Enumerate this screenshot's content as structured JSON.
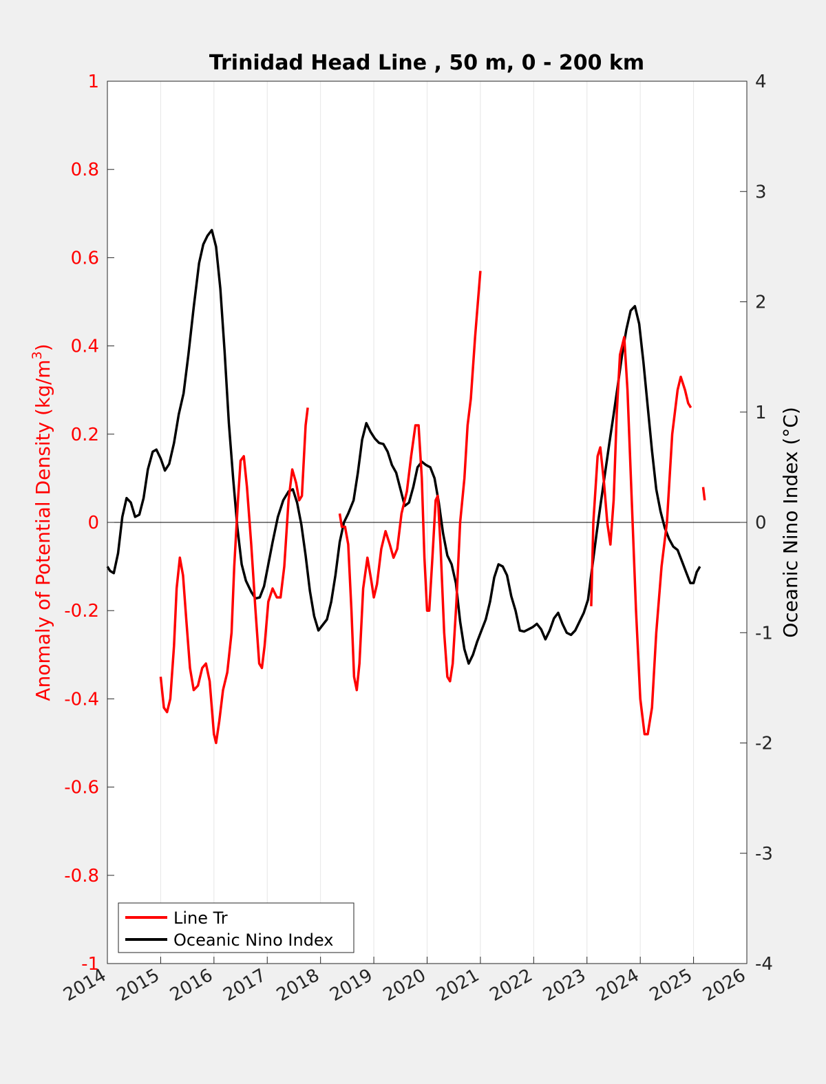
{
  "chart_data": {
    "type": "line",
    "title": "Trinidad Head Line , 50 m, 0 - 200 km",
    "xlabel": "",
    "xlim": [
      2014,
      2026
    ],
    "x_ticks": [
      "2014",
      "2015",
      "2016",
      "2017",
      "2018",
      "2019",
      "2020",
      "2021",
      "2022",
      "2023",
      "2024",
      "2025",
      "2026"
    ],
    "grid": "vertical",
    "legend_position": "bottom-left",
    "y_left": {
      "label": "Anomaly of Potential Density (kg/m",
      "label_superscript": "3",
      "label_suffix": ")",
      "ylim": [
        -1,
        1
      ],
      "ticks": [
        "1",
        "0.8",
        "0.6",
        "0.4",
        "0.2",
        "0",
        "-0.2",
        "-0.4",
        "-0.6",
        "-0.8",
        "-1"
      ],
      "color": "#ff0000"
    },
    "y_right": {
      "label": "Oceanic Nino Index (°C)",
      "ylim": [
        -4,
        4
      ],
      "ticks": [
        "4",
        "3",
        "2",
        "1",
        "0",
        "-1",
        "-2",
        "-3",
        "-4"
      ],
      "color": "#000000"
    },
    "series": [
      {
        "name": "Line Tr",
        "axis": "left",
        "color": "#ff0000",
        "segments": [
          [
            [
              2015.0,
              -0.35
            ],
            [
              2015.06,
              -0.42
            ],
            [
              2015.12,
              -0.43
            ],
            [
              2015.18,
              -0.4
            ],
            [
              2015.25,
              -0.28
            ],
            [
              2015.3,
              -0.15
            ],
            [
              2015.36,
              -0.08
            ],
            [
              2015.42,
              -0.12
            ],
            [
              2015.48,
              -0.22
            ],
            [
              2015.55,
              -0.33
            ],
            [
              2015.62,
              -0.38
            ],
            [
              2015.7,
              -0.37
            ],
            [
              2015.78,
              -0.33
            ],
            [
              2015.85,
              -0.32
            ],
            [
              2015.92,
              -0.36
            ],
            [
              2016.0,
              -0.48
            ],
            [
              2016.04,
              -0.5
            ],
            [
              2016.1,
              -0.45
            ],
            [
              2016.17,
              -0.38
            ],
            [
              2016.25,
              -0.34
            ],
            [
              2016.33,
              -0.25
            ],
            [
              2016.38,
              -0.1
            ],
            [
              2016.45,
              0.05
            ],
            [
              2016.5,
              0.14
            ],
            [
              2016.56,
              0.15
            ],
            [
              2016.62,
              0.08
            ],
            [
              2016.7,
              -0.05
            ],
            [
              2016.78,
              -0.2
            ],
            [
              2016.85,
              -0.32
            ],
            [
              2016.9,
              -0.33
            ],
            [
              2016.95,
              -0.28
            ],
            [
              2017.02,
              -0.18
            ],
            [
              2017.1,
              -0.15
            ],
            [
              2017.18,
              -0.17
            ],
            [
              2017.25,
              -0.17
            ],
            [
              2017.32,
              -0.1
            ],
            [
              2017.4,
              0.05
            ],
            [
              2017.47,
              0.12
            ],
            [
              2017.54,
              0.09
            ],
            [
              2017.6,
              0.05
            ],
            [
              2017.65,
              0.06
            ],
            [
              2017.72,
              0.22
            ],
            [
              2017.76,
              0.26
            ]
          ],
          [
            [
              2018.36,
              0.02
            ],
            [
              2018.4,
              -0.01
            ],
            [
              2018.46,
              -0.01
            ],
            [
              2018.52,
              -0.05
            ],
            [
              2018.58,
              -0.2
            ],
            [
              2018.63,
              -0.35
            ],
            [
              2018.68,
              -0.38
            ],
            [
              2018.73,
              -0.32
            ],
            [
              2018.8,
              -0.15
            ],
            [
              2018.88,
              -0.08
            ],
            [
              2018.95,
              -0.13
            ],
            [
              2019.0,
              -0.17
            ],
            [
              2019.06,
              -0.14
            ],
            [
              2019.14,
              -0.06
            ],
            [
              2019.22,
              -0.02
            ],
            [
              2019.3,
              -0.05
            ],
            [
              2019.37,
              -0.08
            ],
            [
              2019.44,
              -0.06
            ],
            [
              2019.52,
              0.02
            ],
            [
              2019.62,
              0.07
            ],
            [
              2019.7,
              0.15
            ],
            [
              2019.78,
              0.22
            ],
            [
              2019.84,
              0.22
            ],
            [
              2019.9,
              0.1
            ],
            [
              2019.95,
              -0.08
            ],
            [
              2020.0,
              -0.2
            ],
            [
              2020.04,
              -0.2
            ],
            [
              2020.1,
              -0.08
            ],
            [
              2020.16,
              0.05
            ],
            [
              2020.2,
              0.06
            ],
            [
              2020.25,
              -0.05
            ],
            [
              2020.32,
              -0.25
            ],
            [
              2020.38,
              -0.35
            ],
            [
              2020.43,
              -0.36
            ],
            [
              2020.48,
              -0.32
            ],
            [
              2020.55,
              -0.18
            ],
            [
              2020.62,
              0.0
            ],
            [
              2020.7,
              0.1
            ],
            [
              2020.76,
              0.22
            ],
            [
              2020.82,
              0.28
            ],
            [
              2020.9,
              0.42
            ],
            [
              2021.0,
              0.57
            ]
          ],
          [
            [
              2023.08,
              -0.19
            ],
            [
              2023.12,
              0.0
            ],
            [
              2023.2,
              0.15
            ],
            [
              2023.25,
              0.17
            ],
            [
              2023.32,
              0.09
            ],
            [
              2023.38,
              0.0
            ],
            [
              2023.44,
              -0.05
            ],
            [
              2023.5,
              0.05
            ],
            [
              2023.56,
              0.25
            ],
            [
              2023.62,
              0.38
            ],
            [
              2023.7,
              0.42
            ],
            [
              2023.76,
              0.3
            ],
            [
              2023.84,
              0.05
            ],
            [
              2023.92,
              -0.2
            ],
            [
              2024.0,
              -0.4
            ],
            [
              2024.08,
              -0.48
            ],
            [
              2024.14,
              -0.48
            ],
            [
              2024.22,
              -0.42
            ],
            [
              2024.3,
              -0.25
            ],
            [
              2024.4,
              -0.1
            ],
            [
              2024.5,
              0.0
            ],
            [
              2024.6,
              0.2
            ],
            [
              2024.7,
              0.3
            ],
            [
              2024.76,
              0.33
            ],
            [
              2024.84,
              0.3
            ],
            [
              2024.9,
              0.27
            ],
            [
              2024.95,
              0.26
            ]
          ],
          [
            [
              2025.18,
              0.08
            ],
            [
              2025.21,
              0.05
            ]
          ]
        ]
      },
      {
        "name": "Oceanic Nino Index",
        "axis": "right",
        "color": "#000000",
        "segments": [
          [
            [
              2014.0,
              -0.4
            ],
            [
              2014.05,
              -0.44
            ],
            [
              2014.12,
              -0.46
            ],
            [
              2014.2,
              -0.28
            ],
            [
              2014.28,
              0.05
            ],
            [
              2014.36,
              0.22
            ],
            [
              2014.44,
              0.18
            ],
            [
              2014.52,
              0.05
            ],
            [
              2014.6,
              0.07
            ],
            [
              2014.68,
              0.22
            ],
            [
              2014.76,
              0.48
            ],
            [
              2014.85,
              0.64
            ],
            [
              2014.92,
              0.66
            ],
            [
              2015.0,
              0.58
            ],
            [
              2015.08,
              0.47
            ],
            [
              2015.16,
              0.53
            ],
            [
              2015.25,
              0.72
            ],
            [
              2015.34,
              0.98
            ],
            [
              2015.43,
              1.17
            ],
            [
              2015.52,
              1.52
            ],
            [
              2015.62,
              1.95
            ],
            [
              2015.72,
              2.35
            ],
            [
              2015.8,
              2.52
            ],
            [
              2015.88,
              2.6
            ],
            [
              2015.96,
              2.65
            ],
            [
              2016.04,
              2.5
            ],
            [
              2016.12,
              2.12
            ],
            [
              2016.2,
              1.55
            ],
            [
              2016.28,
              0.9
            ],
            [
              2016.36,
              0.4
            ],
            [
              2016.44,
              -0.05
            ],
            [
              2016.52,
              -0.38
            ],
            [
              2016.6,
              -0.53
            ],
            [
              2016.7,
              -0.63
            ],
            [
              2016.78,
              -0.69
            ],
            [
              2016.86,
              -0.68
            ],
            [
              2016.94,
              -0.58
            ],
            [
              2017.02,
              -0.38
            ],
            [
              2017.1,
              -0.18
            ],
            [
              2017.2,
              0.05
            ],
            [
              2017.3,
              0.2
            ],
            [
              2017.4,
              0.28
            ],
            [
              2017.48,
              0.3
            ],
            [
              2017.56,
              0.18
            ],
            [
              2017.64,
              -0.02
            ],
            [
              2017.72,
              -0.3
            ],
            [
              2017.8,
              -0.62
            ],
            [
              2017.88,
              -0.85
            ],
            [
              2017.96,
              -0.98
            ],
            [
              2018.04,
              -0.93
            ],
            [
              2018.12,
              -0.88
            ],
            [
              2018.2,
              -0.72
            ],
            [
              2018.28,
              -0.48
            ],
            [
              2018.36,
              -0.18
            ],
            [
              2018.44,
              0.0
            ],
            [
              2018.52,
              0.08
            ],
            [
              2018.62,
              0.2
            ],
            [
              2018.7,
              0.45
            ],
            [
              2018.78,
              0.75
            ],
            [
              2018.86,
              0.9
            ],
            [
              2018.94,
              0.82
            ],
            [
              2019.02,
              0.76
            ],
            [
              2019.1,
              0.72
            ],
            [
              2019.18,
              0.71
            ],
            [
              2019.26,
              0.64
            ],
            [
              2019.34,
              0.52
            ],
            [
              2019.42,
              0.45
            ],
            [
              2019.5,
              0.3
            ],
            [
              2019.58,
              0.15
            ],
            [
              2019.66,
              0.18
            ],
            [
              2019.74,
              0.32
            ],
            [
              2019.82,
              0.5
            ],
            [
              2019.9,
              0.55
            ],
            [
              2019.98,
              0.52
            ],
            [
              2020.06,
              0.5
            ],
            [
              2020.14,
              0.4
            ],
            [
              2020.22,
              0.18
            ],
            [
              2020.3,
              -0.1
            ],
            [
              2020.38,
              -0.3
            ],
            [
              2020.46,
              -0.38
            ],
            [
              2020.54,
              -0.55
            ],
            [
              2020.62,
              -0.9
            ],
            [
              2020.7,
              -1.15
            ],
            [
              2020.78,
              -1.28
            ],
            [
              2020.86,
              -1.2
            ],
            [
              2020.94,
              -1.08
            ],
            [
              2021.02,
              -0.98
            ],
            [
              2021.1,
              -0.88
            ],
            [
              2021.18,
              -0.72
            ],
            [
              2021.26,
              -0.5
            ],
            [
              2021.34,
              -0.38
            ],
            [
              2021.42,
              -0.4
            ],
            [
              2021.5,
              -0.48
            ],
            [
              2021.58,
              -0.67
            ],
            [
              2021.66,
              -0.8
            ],
            [
              2021.74,
              -0.98
            ],
            [
              2021.82,
              -0.99
            ],
            [
              2021.9,
              -0.97
            ],
            [
              2021.98,
              -0.95
            ],
            [
              2022.06,
              -0.92
            ],
            [
              2022.14,
              -0.97
            ],
            [
              2022.22,
              -1.06
            ],
            [
              2022.3,
              -0.98
            ],
            [
              2022.38,
              -0.87
            ],
            [
              2022.46,
              -0.82
            ],
            [
              2022.54,
              -0.92
            ],
            [
              2022.62,
              -1.0
            ],
            [
              2022.7,
              -1.02
            ],
            [
              2022.78,
              -0.98
            ],
            [
              2022.86,
              -0.9
            ],
            [
              2022.94,
              -0.82
            ],
            [
              2023.02,
              -0.7
            ],
            [
              2023.1,
              -0.4
            ],
            [
              2023.18,
              -0.1
            ],
            [
              2023.26,
              0.18
            ],
            [
              2023.34,
              0.45
            ],
            [
              2023.42,
              0.72
            ],
            [
              2023.5,
              0.98
            ],
            [
              2023.58,
              1.25
            ],
            [
              2023.66,
              1.52
            ],
            [
              2023.74,
              1.75
            ],
            [
              2023.82,
              1.92
            ],
            [
              2023.9,
              1.96
            ],
            [
              2023.98,
              1.8
            ],
            [
              2024.06,
              1.45
            ],
            [
              2024.14,
              1.05
            ],
            [
              2024.22,
              0.65
            ],
            [
              2024.3,
              0.3
            ],
            [
              2024.38,
              0.1
            ],
            [
              2024.46,
              -0.05
            ],
            [
              2024.54,
              -0.15
            ],
            [
              2024.62,
              -0.22
            ],
            [
              2024.7,
              -0.25
            ],
            [
              2024.78,
              -0.35
            ],
            [
              2024.86,
              -0.45
            ],
            [
              2024.94,
              -0.55
            ],
            [
              2025.0,
              -0.55
            ],
            [
              2025.06,
              -0.45
            ],
            [
              2025.12,
              -0.4
            ]
          ]
        ]
      }
    ]
  }
}
